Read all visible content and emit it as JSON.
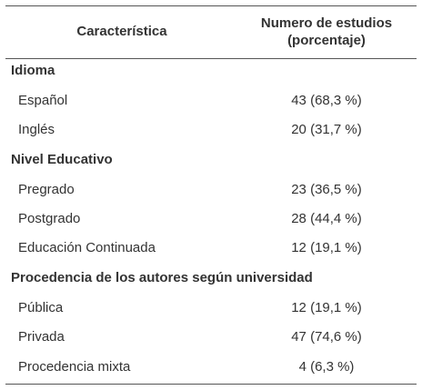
{
  "table": {
    "header": {
      "characteristic": "Característica",
      "studies_line1": "Numero de estudios",
      "studies_line2": "(porcentaje)"
    },
    "sections": [
      {
        "title": "Idioma",
        "rows": [
          {
            "label": "Español",
            "value": "43 (68,3 %)"
          },
          {
            "label": "Inglés",
            "value": "20 (31,7 %)"
          }
        ]
      },
      {
        "title": "Nivel Educativo",
        "rows": [
          {
            "label": "Pregrado",
            "value": "23 (36,5 %)"
          },
          {
            "label": "Postgrado",
            "value": "28 (44,4 %)"
          },
          {
            "label": "Educación Continuada",
            "value": "12 (19,1 %)"
          }
        ]
      },
      {
        "title": "Procedencia de los autores según universidad",
        "rows": [
          {
            "label": "Pública",
            "value": "12 (19,1 %)"
          },
          {
            "label": "Privada",
            "value": "47 (74,6 %)"
          },
          {
            "label": "Procedencia mixta",
            "value": "4 (6,3 %)"
          }
        ]
      }
    ]
  }
}
